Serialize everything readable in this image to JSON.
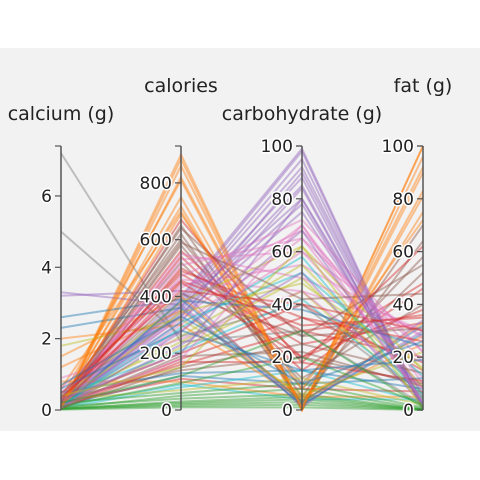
{
  "chart_data": {
    "type": "parallel_coordinates",
    "axes": [
      {
        "name": "calcium (g)",
        "range": [
          0,
          7.4
        ],
        "ticks": [
          0,
          2,
          4,
          6
        ]
      },
      {
        "name": "calories",
        "range": [
          0,
          930
        ],
        "ticks": [
          0,
          200,
          400,
          600,
          800
        ]
      },
      {
        "name": "carbohydrate (g)",
        "range": [
          0,
          100
        ],
        "ticks": [
          0,
          20,
          40,
          60,
          80,
          100
        ]
      },
      {
        "name": "fat (g)",
        "range": [
          0,
          100
        ],
        "ticks": [
          0,
          20,
          40,
          60,
          80,
          100
        ]
      }
    ],
    "colors": [
      "#ff7f0e",
      "#d62728",
      "#2ca02c",
      "#9467bd",
      "#8c564b",
      "#e377c2",
      "#1f77b4",
      "#bcbd22",
      "#17becf",
      "#7f7f7f"
    ],
    "records": [
      {
        "values": [
          0.05,
          900,
          0,
          100
        ],
        "color": "#ff7f0e"
      },
      {
        "values": [
          0.02,
          884,
          0,
          100
        ],
        "color": "#ff7f0e"
      },
      {
        "values": [
          0.3,
          810,
          0,
          90
        ],
        "color": "#ff7f0e"
      },
      {
        "values": [
          0.1,
          750,
          0,
          83
        ],
        "color": "#ff7f0e"
      },
      {
        "values": [
          0.2,
          717,
          0,
          81
        ],
        "color": "#ff7f0e"
      },
      {
        "values": [
          0.6,
          700,
          2,
          75
        ],
        "color": "#ff7f0e"
      },
      {
        "values": [
          0.05,
          650,
          5,
          70
        ],
        "color": "#8c564b"
      },
      {
        "values": [
          0.1,
          620,
          3,
          64
        ],
        "color": "#8c564b"
      },
      {
        "values": [
          0.3,
          600,
          10,
          58
        ],
        "color": "#8c564b"
      },
      {
        "values": [
          0.1,
          580,
          8,
          52
        ],
        "color": "#8c564b"
      },
      {
        "values": [
          0.15,
          560,
          20,
          48
        ],
        "color": "#d62728"
      },
      {
        "values": [
          0.05,
          540,
          15,
          46
        ],
        "color": "#d62728"
      },
      {
        "values": [
          0.2,
          520,
          12,
          40
        ],
        "color": "#8c564b"
      },
      {
        "values": [
          0.1,
          500,
          30,
          36
        ],
        "color": "#d62728"
      },
      {
        "values": [
          0.3,
          480,
          25,
          33
        ],
        "color": "#d62728"
      },
      {
        "values": [
          0.6,
          460,
          45,
          30
        ],
        "color": "#e377c2"
      },
      {
        "values": [
          0.05,
          440,
          55,
          28
        ],
        "color": "#e377c2"
      },
      {
        "values": [
          0.1,
          400,
          99,
          0.5
        ],
        "color": "#9467bd"
      },
      {
        "values": [
          0.02,
          390,
          98,
          0
        ],
        "color": "#9467bd"
      },
      {
        "values": [
          0.05,
          380,
          95,
          1
        ],
        "color": "#9467bd"
      },
      {
        "values": [
          0.1,
          370,
          92,
          2
        ],
        "color": "#9467bd"
      },
      {
        "values": [
          0.08,
          360,
          88,
          1
        ],
        "color": "#9467bd"
      },
      {
        "values": [
          0.03,
          350,
          85,
          0.3
        ],
        "color": "#9467bd"
      },
      {
        "values": [
          0.2,
          365,
          80,
          5
        ],
        "color": "#9467bd"
      },
      {
        "values": [
          0.1,
          340,
          78,
          3
        ],
        "color": "#9467bd"
      },
      {
        "values": [
          0.05,
          330,
          75,
          6
        ],
        "color": "#9467bd"
      },
      {
        "values": [
          0.4,
          320,
          70,
          10
        ],
        "color": "#e377c2"
      },
      {
        "values": [
          0.1,
          300,
          65,
          8
        ],
        "color": "#e377c2"
      },
      {
        "values": [
          0.2,
          280,
          60,
          12
        ],
        "color": "#e377c2"
      },
      {
        "values": [
          0.15,
          260,
          55,
          9
        ],
        "color": "#bcbd22"
      },
      {
        "values": [
          0.3,
          240,
          50,
          6
        ],
        "color": "#bcbd22"
      },
      {
        "values": [
          0.12,
          220,
          45,
          4
        ],
        "color": "#bcbd22"
      },
      {
        "values": [
          0.25,
          200,
          40,
          15
        ],
        "color": "#d62728"
      },
      {
        "values": [
          0.1,
          180,
          35,
          18
        ],
        "color": "#d62728"
      },
      {
        "values": [
          0.2,
          160,
          30,
          20
        ],
        "color": "#d62728"
      },
      {
        "values": [
          0.05,
          150,
          25,
          14
        ],
        "color": "#8c564b"
      },
      {
        "values": [
          0.3,
          140,
          20,
          10
        ],
        "color": "#8c564b"
      },
      {
        "values": [
          0.5,
          130,
          15,
          8
        ],
        "color": "#1f77b4"
      },
      {
        "values": [
          0.12,
          120,
          10,
          12
        ],
        "color": "#1f77b4"
      },
      {
        "values": [
          0.2,
          110,
          8,
          7
        ],
        "color": "#d62728"
      },
      {
        "values": [
          0.8,
          100,
          5,
          5
        ],
        "color": "#ff7f0e"
      },
      {
        "values": [
          0.1,
          90,
          4,
          4
        ],
        "color": "#17becf"
      },
      {
        "values": [
          0.05,
          80,
          15,
          3
        ],
        "color": "#17becf"
      },
      {
        "values": [
          0.3,
          70,
          12,
          2
        ],
        "color": "#bcbd22"
      },
      {
        "values": [
          0.2,
          60,
          10,
          1
        ],
        "color": "#2ca02c"
      },
      {
        "values": [
          0.05,
          50,
          8,
          0.5
        ],
        "color": "#2ca02c"
      },
      {
        "values": [
          0.1,
          40,
          6,
          0.3
        ],
        "color": "#2ca02c"
      },
      {
        "values": [
          0.03,
          30,
          5,
          0.2
        ],
        "color": "#2ca02c"
      },
      {
        "values": [
          0.05,
          25,
          4,
          0.2
        ],
        "color": "#2ca02c"
      },
      {
        "values": [
          0.02,
          20,
          3,
          0.1
        ],
        "color": "#2ca02c"
      },
      {
        "values": [
          0.04,
          15,
          2,
          0.1
        ],
        "color": "#2ca02c"
      },
      {
        "values": [
          0.01,
          10,
          1,
          0
        ],
        "color": "#2ca02c"
      },
      {
        "values": [
          1.2,
          350,
          5,
          28
        ],
        "color": "#ff7f0e"
      },
      {
        "values": [
          1.5,
          400,
          3,
          33
        ],
        "color": "#ff7f0e"
      },
      {
        "values": [
          2.0,
          300,
          4,
          25
        ],
        "color": "#ff7f0e"
      },
      {
        "values": [
          0.9,
          250,
          45,
          8
        ],
        "color": "#e377c2"
      },
      {
        "values": [
          3.3,
          370,
          2,
          30
        ],
        "color": "#9467bd"
      },
      {
        "values": [
          3.2,
          420,
          1,
          34
        ],
        "color": "#9467bd"
      },
      {
        "values": [
          2.6,
          390,
          3,
          32
        ],
        "color": "#1f77b4"
      },
      {
        "values": [
          2.3,
          360,
          2,
          29
        ],
        "color": "#1f77b4"
      },
      {
        "values": [
          1.8,
          320,
          6,
          22
        ],
        "color": "#bcbd22"
      },
      {
        "values": [
          7.2,
          240,
          30,
          2
        ],
        "color": "#7f7f7f"
      },
      {
        "values": [
          5.0,
          260,
          40,
          5
        ],
        "color": "#7f7f7f"
      },
      {
        "values": [
          0.2,
          430,
          68,
          18
        ],
        "color": "#e377c2"
      },
      {
        "values": [
          0.1,
          470,
          72,
          22
        ],
        "color": "#e377c2"
      },
      {
        "values": [
          0.3,
          380,
          62,
          15
        ],
        "color": "#bcbd22"
      },
      {
        "values": [
          0.1,
          290,
          58,
          4
        ],
        "color": "#17becf"
      },
      {
        "values": [
          0.4,
          210,
          42,
          6
        ],
        "color": "#17becf"
      },
      {
        "values": [
          0.1,
          190,
          22,
          9
        ],
        "color": "#8c564b"
      },
      {
        "values": [
          0.05,
          170,
          18,
          11
        ],
        "color": "#d62728"
      },
      {
        "values": [
          0.15,
          550,
          50,
          30
        ],
        "color": "#e377c2"
      },
      {
        "values": [
          0.2,
          530,
          60,
          27
        ],
        "color": "#e377c2"
      },
      {
        "values": [
          0.3,
          510,
          65,
          22
        ],
        "color": "#e377c2"
      },
      {
        "values": [
          0.25,
          490,
          35,
          26
        ],
        "color": "#d62728"
      },
      {
        "values": [
          0.1,
          450,
          20,
          38
        ],
        "color": "#d62728"
      },
      {
        "values": [
          0.2,
          410,
          28,
          31
        ],
        "color": "#8c564b"
      },
      {
        "values": [
          0.05,
          385,
          38,
          24
        ],
        "color": "#1f77b4"
      },
      {
        "values": [
          0.15,
          345,
          48,
          16
        ],
        "color": "#bcbd22"
      },
      {
        "values": [
          0.1,
          310,
          52,
          13
        ],
        "color": "#17becf"
      },
      {
        "values": [
          0.05,
          275,
          68,
          3
        ],
        "color": "#9467bd"
      },
      {
        "values": [
          0.1,
          230,
          52,
          2
        ],
        "color": "#9467bd"
      },
      {
        "values": [
          0.1,
          590,
          42,
          44
        ],
        "color": "#8c564b"
      },
      {
        "values": [
          0.2,
          640,
          28,
          55
        ],
        "color": "#8c564b"
      },
      {
        "values": [
          0.1,
          670,
          18,
          62
        ],
        "color": "#d62728"
      },
      {
        "values": [
          0.05,
          690,
          8,
          72
        ],
        "color": "#ff7f0e"
      },
      {
        "values": [
          0.1,
          820,
          1,
          92
        ],
        "color": "#ff7f0e"
      },
      {
        "values": [
          0.05,
          860,
          0.5,
          96
        ],
        "color": "#ff7f0e"
      },
      {
        "values": [
          0.3,
          200,
          80,
          1
        ],
        "color": "#9467bd"
      },
      {
        "values": [
          0.5,
          330,
          90,
          2
        ],
        "color": "#9467bd"
      },
      {
        "values": [
          0.2,
          310,
          84,
          1
        ],
        "color": "#9467bd"
      },
      {
        "values": [
          0.1,
          180,
          70,
          3
        ],
        "color": "#e377c2"
      },
      {
        "values": [
          0.4,
          150,
          62,
          1
        ],
        "color": "#bcbd22"
      },
      {
        "values": [
          0.2,
          120,
          30,
          1
        ],
        "color": "#2ca02c"
      },
      {
        "values": [
          0.1,
          95,
          20,
          2
        ],
        "color": "#2ca02c"
      },
      {
        "values": [
          0.6,
          280,
          15,
          19
        ],
        "color": "#1f77b4"
      },
      {
        "values": [
          0.7,
          330,
          10,
          26
        ],
        "color": "#1f77b4"
      },
      {
        "values": [
          0.35,
          420,
          40,
          30
        ],
        "color": "#d62728"
      },
      {
        "values": [
          0.45,
          455,
          32,
          35
        ],
        "color": "#d62728"
      }
    ]
  }
}
